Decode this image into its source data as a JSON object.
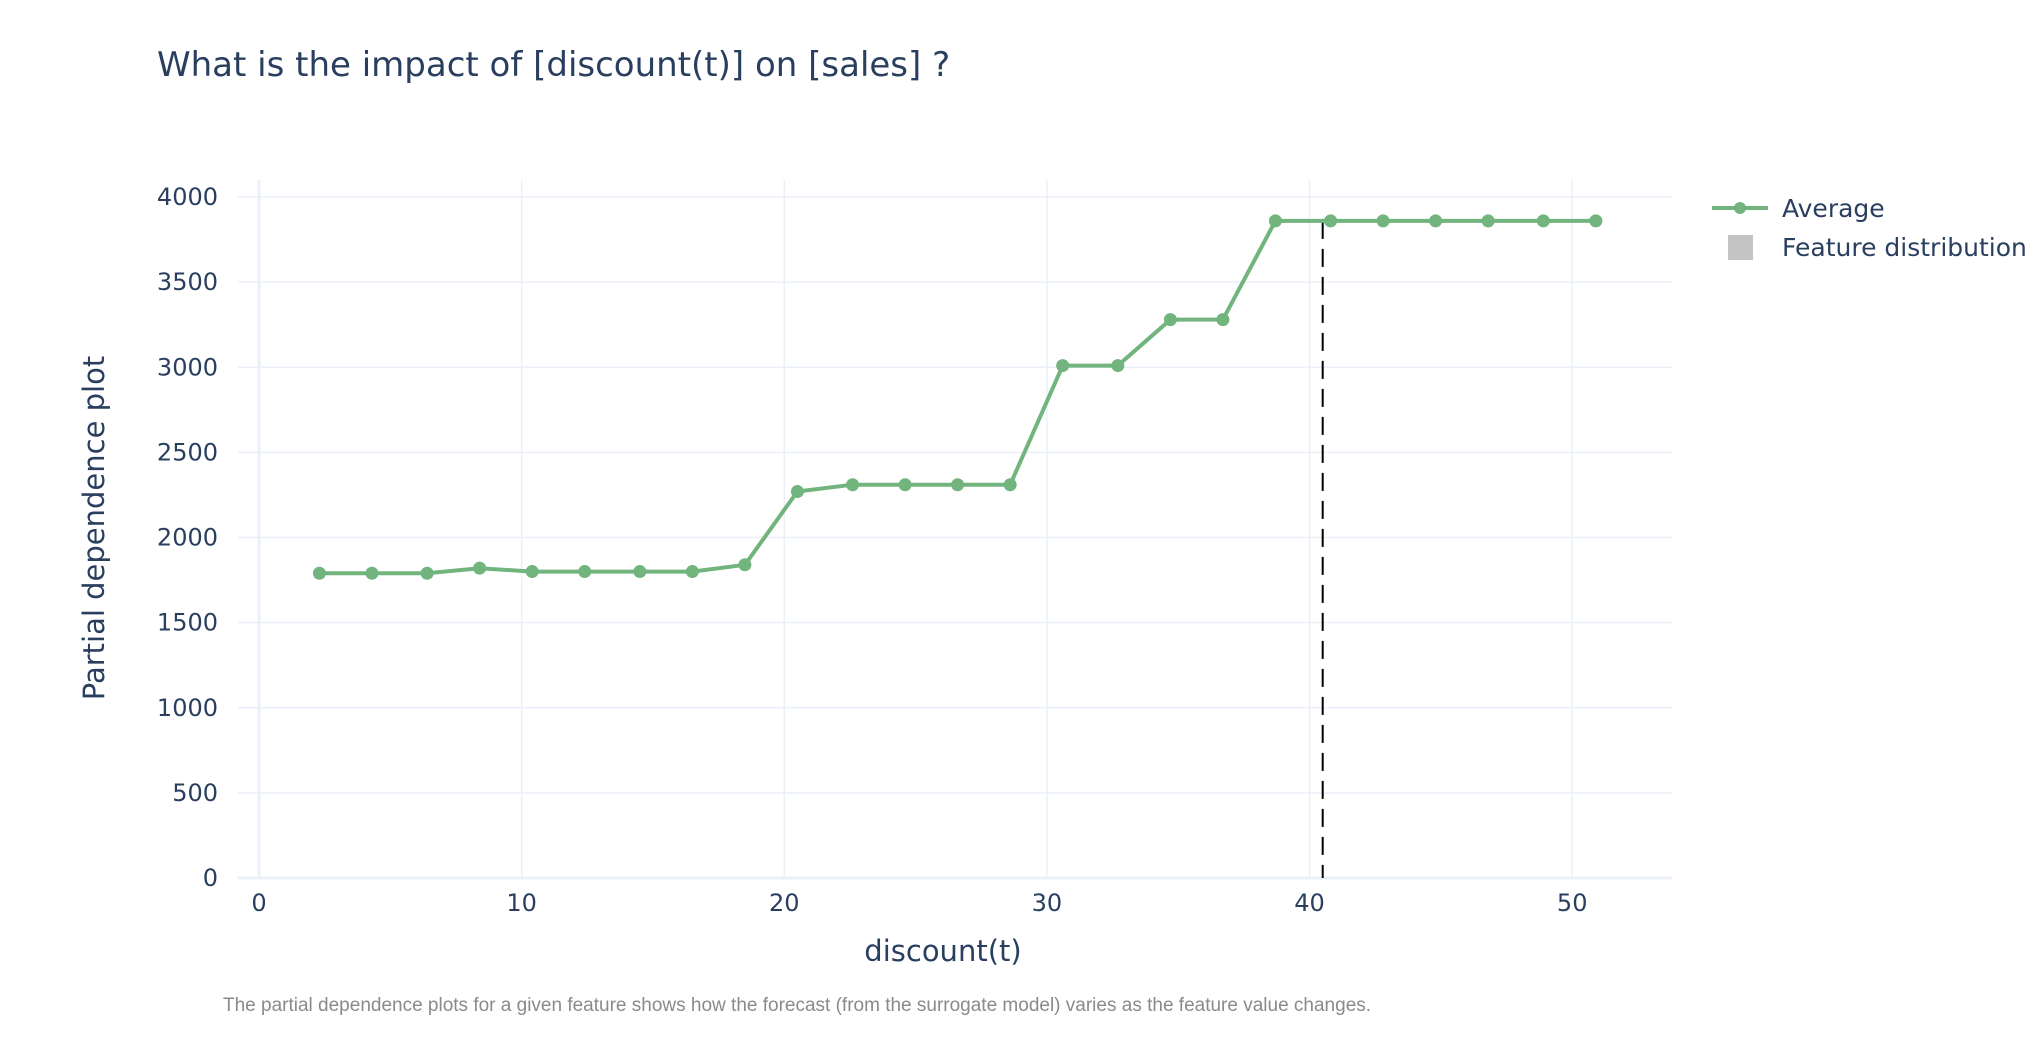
{
  "chart_data": {
    "type": "line",
    "title": "What is the impact of [discount(t)] on [sales] ?",
    "xlabel": "discount(t)",
    "ylabel": "Partial dependence plot",
    "xlim": [
      -0.8,
      53.8
    ],
    "ylim": [
      0,
      4100
    ],
    "x_ticks": [
      0,
      10,
      20,
      30,
      40,
      50
    ],
    "y_ticks": [
      0,
      500,
      1000,
      1500,
      2000,
      2500,
      3000,
      3500,
      4000
    ],
    "grid": true,
    "legend_position": "top-right",
    "series": [
      {
        "name": "Average",
        "color": "#72b47d",
        "x": [
          2.3,
          4.3,
          6.4,
          8.4,
          10.4,
          12.4,
          14.5,
          16.5,
          18.5,
          20.5,
          22.6,
          24.6,
          26.6,
          28.6,
          30.6,
          32.7,
          34.7,
          36.7,
          38.7,
          40.8,
          42.8,
          44.8,
          46.8,
          48.9,
          50.9
        ],
        "y": [
          1790,
          1790,
          1790,
          1820,
          1800,
          1800,
          1800,
          1800,
          1840,
          2270,
          2310,
          2310,
          2310,
          2310,
          3010,
          3010,
          3280,
          3280,
          3860,
          3860,
          3860,
          3860,
          3860,
          3860,
          3860
        ]
      },
      {
        "name": "Feature distribution",
        "color": "#c4c4c4",
        "type": "histogram"
      }
    ],
    "reference_line": {
      "x": 40.5,
      "style": "dashed",
      "color": "#000000"
    }
  },
  "footnote": "The partial dependence plots for a given feature shows how the forecast  (from the surrogate model) varies as the feature value changes."
}
